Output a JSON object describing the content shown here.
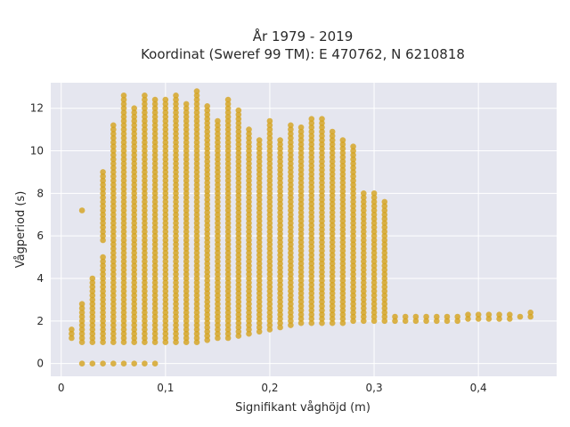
{
  "chart_data": {
    "type": "scatter",
    "title_line1": "År 1979 - 2019",
    "title_line2": "Koordinat (Sweref 99 TM): E 470762, N 6210818",
    "xlabel": "Signifikant våghöjd (m)",
    "ylabel": "Vågperiod (s)",
    "xlim": [
      -0.01,
      0.475
    ],
    "ylim": [
      -0.6,
      13.2
    ],
    "x_ticks": [
      {
        "value": 0,
        "label": "0"
      },
      {
        "value": 0.1,
        "label": "0,1"
      },
      {
        "value": 0.2,
        "label": "0,2"
      },
      {
        "value": 0.3,
        "label": "0,3"
      },
      {
        "value": 0.4,
        "label": "0,4"
      }
    ],
    "y_ticks": [
      {
        "value": 0,
        "label": "0"
      },
      {
        "value": 2,
        "label": "2"
      },
      {
        "value": 4,
        "label": "4"
      },
      {
        "value": 6,
        "label": "6"
      },
      {
        "value": 8,
        "label": "8"
      },
      {
        "value": 10,
        "label": "10"
      },
      {
        "value": 12,
        "label": "12"
      }
    ],
    "grid": true,
    "marker_color": "#d4a21d",
    "background_color": "#e5e6ef",
    "marker_step_y": 0.2,
    "columns": [
      {
        "x": 0.01,
        "ranges": [
          [
            1.2,
            1.6
          ]
        ]
      },
      {
        "x": 0.02,
        "ranges": [
          [
            0,
            0
          ],
          [
            1.0,
            2.8
          ],
          [
            7.2,
            7.2
          ]
        ]
      },
      {
        "x": 0.03,
        "ranges": [
          [
            0,
            0
          ],
          [
            1.0,
            4.0
          ]
        ]
      },
      {
        "x": 0.04,
        "ranges": [
          [
            0,
            0
          ],
          [
            1.0,
            4.9
          ],
          [
            5.8,
            9.0
          ]
        ]
      },
      {
        "x": 0.05,
        "ranges": [
          [
            0,
            0
          ],
          [
            1.0,
            11.2
          ]
        ]
      },
      {
        "x": 0.06,
        "ranges": [
          [
            0,
            0
          ],
          [
            1.0,
            12.6
          ]
        ]
      },
      {
        "x": 0.07,
        "ranges": [
          [
            0,
            0
          ],
          [
            1.0,
            12.0
          ]
        ]
      },
      {
        "x": 0.08,
        "ranges": [
          [
            0,
            0
          ],
          [
            1.0,
            12.5
          ]
        ]
      },
      {
        "x": 0.09,
        "ranges": [
          [
            0,
            0
          ],
          [
            1.0,
            12.4
          ]
        ]
      },
      {
        "x": 0.1,
        "ranges": [
          [
            1.0,
            12.4
          ]
        ]
      },
      {
        "x": 0.11,
        "ranges": [
          [
            1.0,
            12.6
          ]
        ]
      },
      {
        "x": 0.12,
        "ranges": [
          [
            1.0,
            12.2
          ]
        ]
      },
      {
        "x": 0.13,
        "ranges": [
          [
            1.0,
            12.8
          ]
        ]
      },
      {
        "x": 0.14,
        "ranges": [
          [
            1.1,
            12.2
          ]
        ]
      },
      {
        "x": 0.15,
        "ranges": [
          [
            1.2,
            11.4
          ]
        ]
      },
      {
        "x": 0.16,
        "ranges": [
          [
            1.2,
            12.4
          ]
        ]
      },
      {
        "x": 0.17,
        "ranges": [
          [
            1.3,
            12.0
          ]
        ]
      },
      {
        "x": 0.18,
        "ranges": [
          [
            1.4,
            11.0
          ]
        ]
      },
      {
        "x": 0.19,
        "ranges": [
          [
            1.5,
            10.4
          ]
        ]
      },
      {
        "x": 0.2,
        "ranges": [
          [
            1.6,
            11.4
          ]
        ]
      },
      {
        "x": 0.21,
        "ranges": [
          [
            1.7,
            10.4
          ]
        ]
      },
      {
        "x": 0.22,
        "ranges": [
          [
            1.8,
            11.2
          ]
        ]
      },
      {
        "x": 0.23,
        "ranges": [
          [
            1.9,
            11.2
          ]
        ]
      },
      {
        "x": 0.24,
        "ranges": [
          [
            1.9,
            11.4
          ]
        ]
      },
      {
        "x": 0.25,
        "ranges": [
          [
            1.9,
            11.4
          ]
        ]
      },
      {
        "x": 0.26,
        "ranges": [
          [
            1.9,
            11.0
          ]
        ]
      },
      {
        "x": 0.27,
        "ranges": [
          [
            1.9,
            10.4
          ]
        ]
      },
      {
        "x": 0.28,
        "ranges": [
          [
            2.0,
            10.2
          ]
        ]
      },
      {
        "x": 0.29,
        "ranges": [
          [
            2.0,
            8.0
          ]
        ]
      },
      {
        "x": 0.3,
        "ranges": [
          [
            2.0,
            8.0
          ]
        ]
      },
      {
        "x": 0.31,
        "ranges": [
          [
            2.0,
            7.6
          ]
        ]
      },
      {
        "x": 0.32,
        "ranges": [
          [
            2.0,
            2.2
          ]
        ]
      },
      {
        "x": 0.33,
        "ranges": [
          [
            2.0,
            2.2
          ]
        ]
      },
      {
        "x": 0.34,
        "ranges": [
          [
            2.0,
            2.2
          ]
        ]
      },
      {
        "x": 0.35,
        "ranges": [
          [
            2.0,
            2.2
          ]
        ]
      },
      {
        "x": 0.36,
        "ranges": [
          [
            2.0,
            2.2
          ]
        ]
      },
      {
        "x": 0.37,
        "ranges": [
          [
            2.0,
            2.2
          ]
        ]
      },
      {
        "x": 0.38,
        "ranges": [
          [
            2.0,
            2.2
          ]
        ]
      },
      {
        "x": 0.39,
        "ranges": [
          [
            2.1,
            2.3
          ]
        ]
      },
      {
        "x": 0.4,
        "ranges": [
          [
            2.1,
            2.3
          ]
        ]
      },
      {
        "x": 0.41,
        "ranges": [
          [
            2.1,
            2.3
          ]
        ]
      },
      {
        "x": 0.42,
        "ranges": [
          [
            2.1,
            2.3
          ]
        ]
      },
      {
        "x": 0.43,
        "ranges": [
          [
            2.1,
            2.3
          ]
        ]
      },
      {
        "x": 0.44,
        "ranges": [
          [
            2.2,
            2.3
          ]
        ]
      },
      {
        "x": 0.45,
        "ranges": [
          [
            2.2,
            2.4
          ]
        ]
      }
    ]
  }
}
